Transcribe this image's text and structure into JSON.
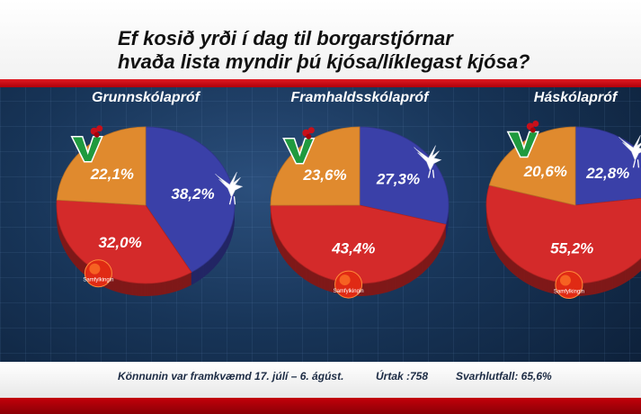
{
  "title_lines": [
    "Ef kosið yrði í dag til borgarstjórnar",
    "hvaða lista myndir þú kjósa/líklegast kjósa?"
  ],
  "footer": {
    "survey": "Könnunin var framkvæmd 17. júlí – 6. ágúst.",
    "sample": "Úrtak :758",
    "response": "Svarhlutfall: 65,6%"
  },
  "logo_text": "Samfylkingin",
  "colors": {
    "blue": "#3a40a8",
    "red": "#d42a2a",
    "orange": "#e08a2e",
    "title_band": "#ffffff",
    "accent_red": "#c3000a"
  },
  "chart_data": [
    {
      "type": "pie",
      "title": "Grunnskólapróf",
      "slices": [
        {
          "label": "38,2%",
          "value": 38.2,
          "color": "#3a40a8",
          "icon": "falcon-icon"
        },
        {
          "label": "32,0%",
          "value": 32.0,
          "color": "#d42a2a",
          "icon": "samfylkingin-rose-logo"
        },
        {
          "label": "22,1%",
          "value": 22.1,
          "color": "#e08a2e",
          "icon": "v-rose-logo"
        }
      ]
    },
    {
      "type": "pie",
      "title": "Framhaldsskólapróf",
      "slices": [
        {
          "label": "27,3%",
          "value": 27.3,
          "color": "#3a40a8",
          "icon": "falcon-icon"
        },
        {
          "label": "43,4%",
          "value": 43.4,
          "color": "#d42a2a",
          "icon": "samfylkingin-rose-logo"
        },
        {
          "label": "23,6%",
          "value": 23.6,
          "color": "#e08a2e",
          "icon": "v-rose-logo"
        }
      ]
    },
    {
      "type": "pie",
      "title": "Háskólapróf",
      "slices": [
        {
          "label": "22,8%",
          "value": 22.8,
          "color": "#3a40a8",
          "icon": "falcon-icon"
        },
        {
          "label": "55,2%",
          "value": 55.2,
          "color": "#d42a2a",
          "icon": "samfylkingin-rose-logo"
        },
        {
          "label": "20,6%",
          "value": 20.6,
          "color": "#e08a2e",
          "icon": "v-rose-logo"
        }
      ]
    }
  ]
}
